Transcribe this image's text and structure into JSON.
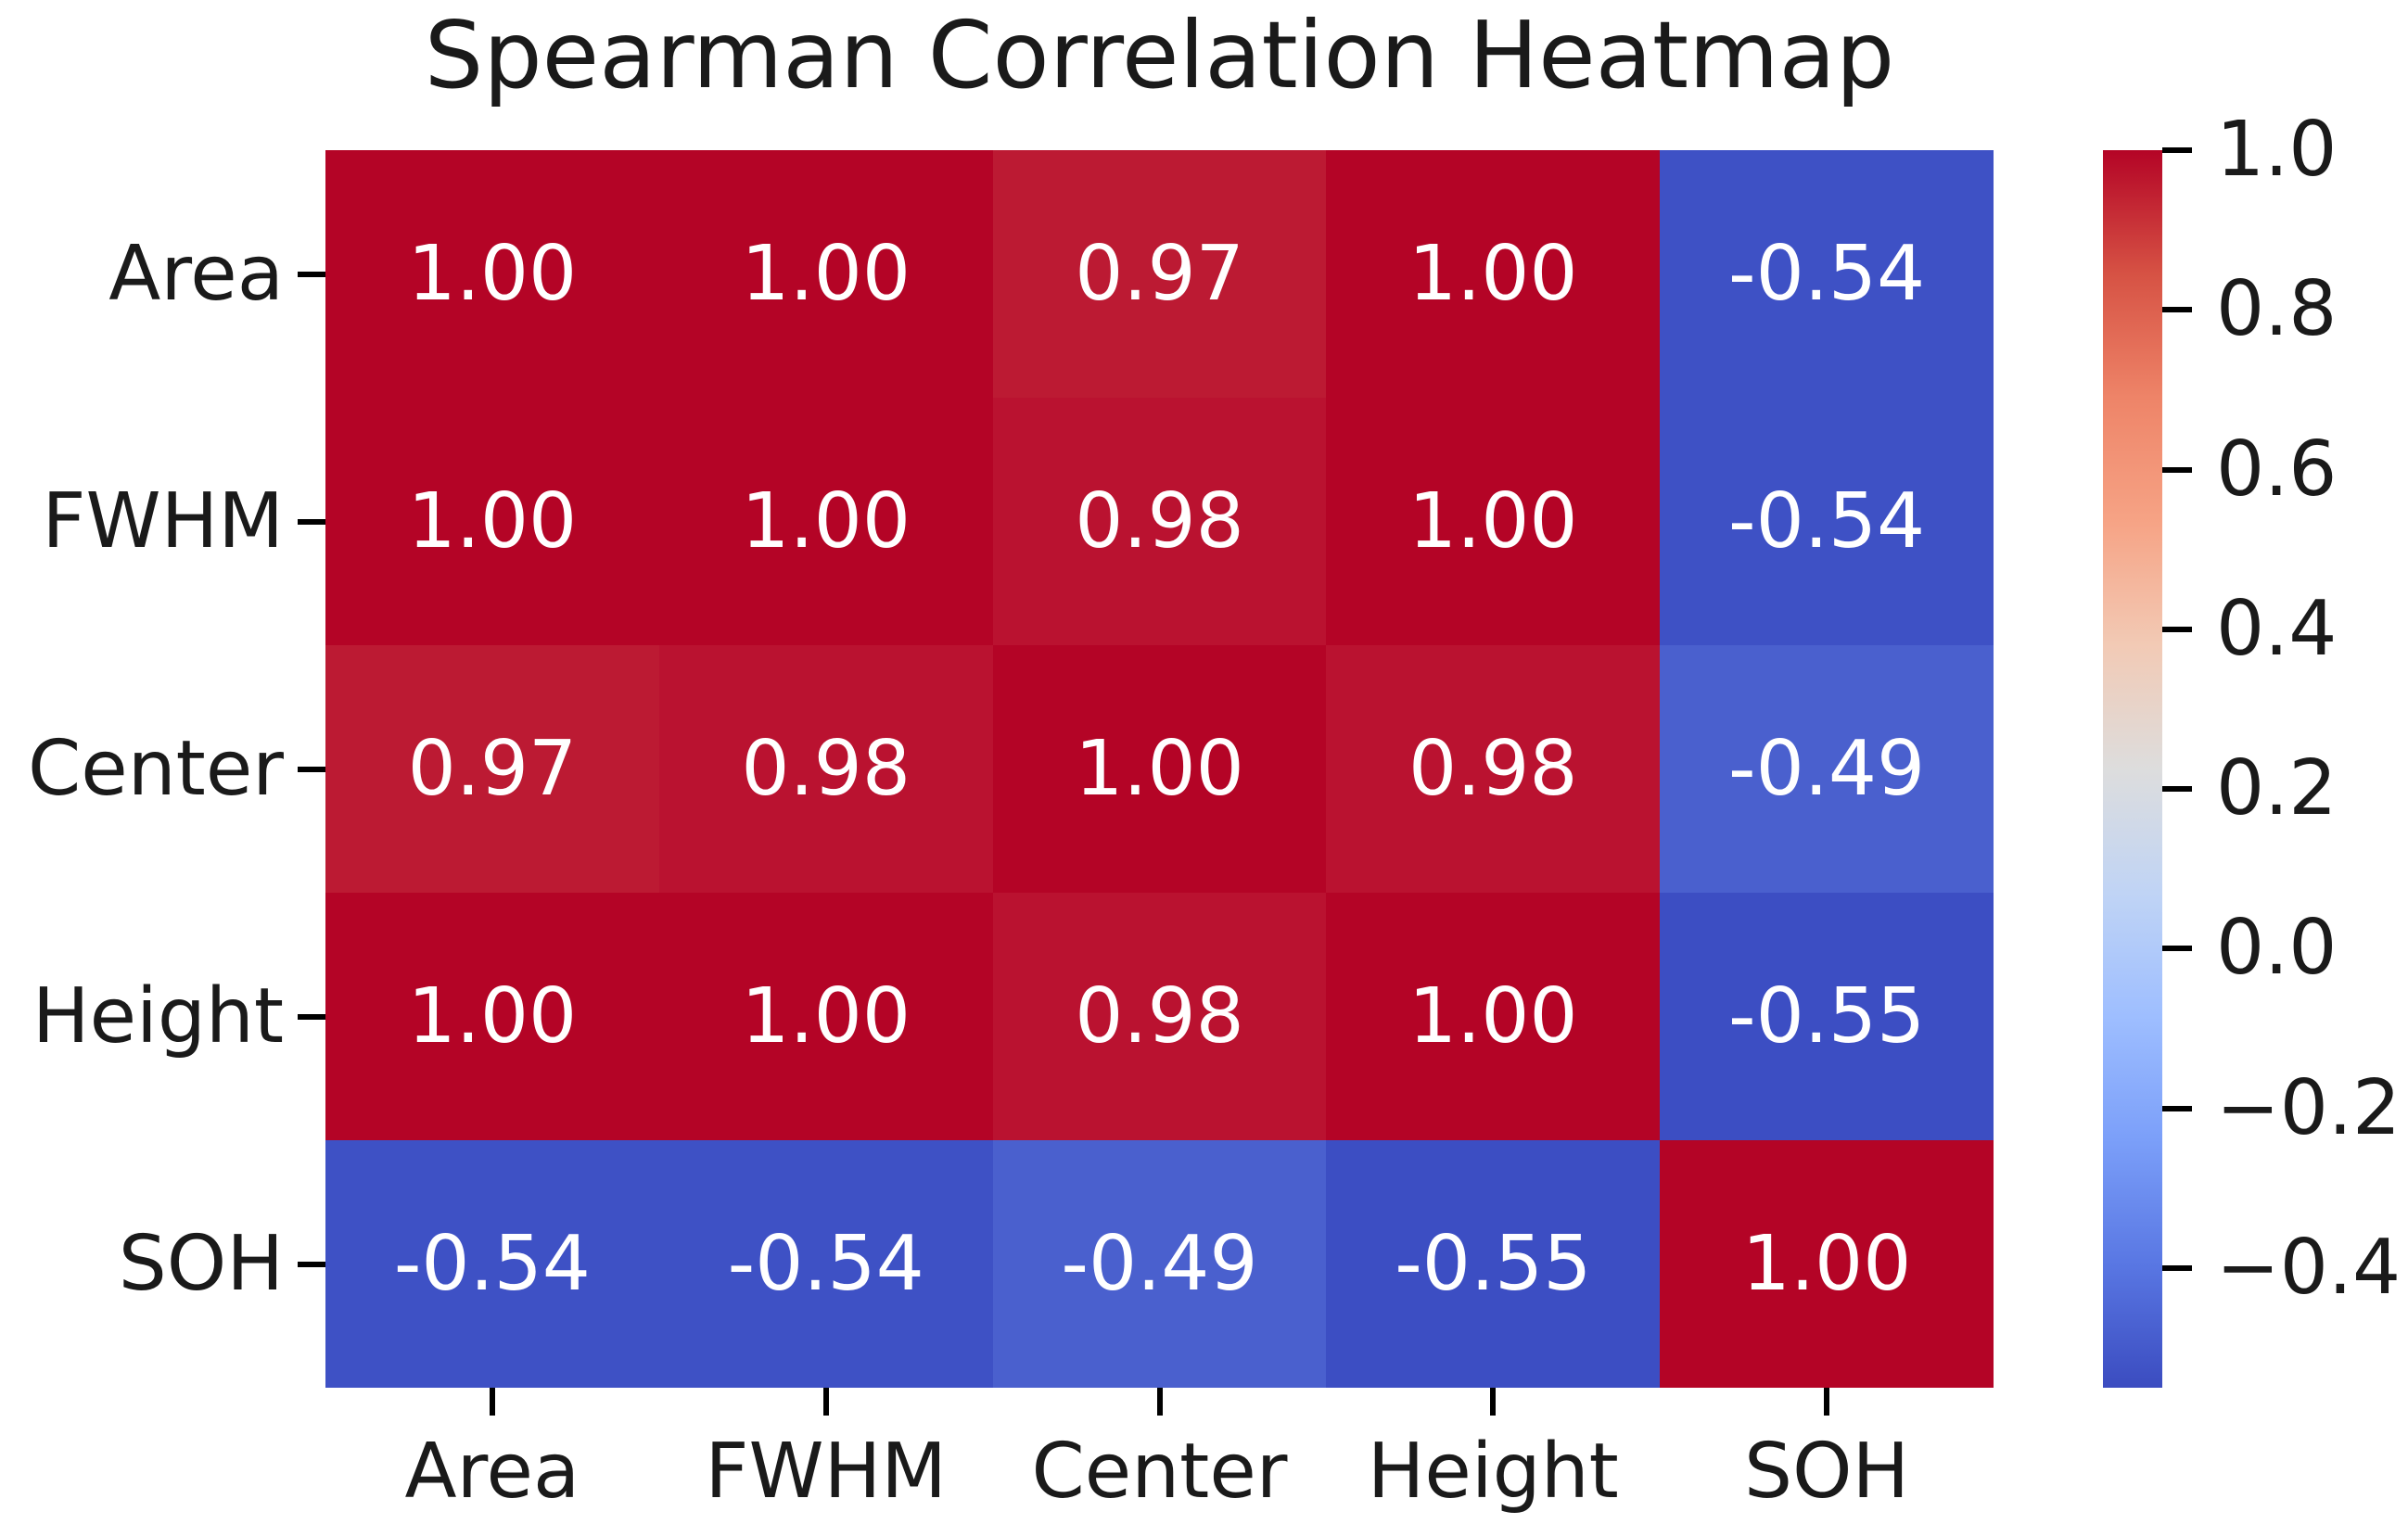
{
  "title": "Spearman Correlation Heatmap",
  "colors": {
    "background": "#ffffff",
    "text": "#1a1a1a",
    "tick": "#000000",
    "annotation_text": "#ffffff",
    "heat_max_red": "#b40426",
    "heat_min_blue": "#3b4cc0"
  },
  "chart_data": {
    "type": "heatmap",
    "title": "Spearman Correlation Heatmap",
    "x_categories": [
      "Area",
      "FWHM",
      "Center",
      "Height",
      "SOH"
    ],
    "y_categories": [
      "Area",
      "FWHM",
      "Center",
      "Height",
      "SOH"
    ],
    "matrix": [
      [
        1.0,
        1.0,
        0.97,
        1.0,
        -0.54
      ],
      [
        1.0,
        1.0,
        0.98,
        1.0,
        -0.54
      ],
      [
        0.97,
        0.98,
        1.0,
        0.98,
        -0.49
      ],
      [
        1.0,
        1.0,
        0.98,
        1.0,
        -0.55
      ],
      [
        -0.54,
        -0.54,
        -0.49,
        -0.55,
        1.0
      ]
    ],
    "cell_labels": [
      [
        "1.00",
        "1.00",
        "0.97",
        "1.00",
        "-0.54"
      ],
      [
        "1.00",
        "1.00",
        "0.98",
        "1.00",
        "-0.54"
      ],
      [
        "0.97",
        "0.98",
        "1.00",
        "0.98",
        "-0.49"
      ],
      [
        "1.00",
        "1.00",
        "0.98",
        "1.00",
        "-0.55"
      ],
      [
        "-0.54",
        "-0.54",
        "-0.49",
        "-0.55",
        "1.00"
      ]
    ],
    "cell_colors": [
      [
        "#b40426",
        "#b40426",
        "#bc1a33",
        "#b40426",
        "#3e51c5"
      ],
      [
        "#b40426",
        "#b40426",
        "#ba1230",
        "#b40426",
        "#3e51c5"
      ],
      [
        "#bc1a33",
        "#ba1230",
        "#b40426",
        "#ba1230",
        "#4a60ce"
      ],
      [
        "#b40426",
        "#b40426",
        "#ba1230",
        "#b40426",
        "#3c4ec3"
      ],
      [
        "#3e51c5",
        "#3e51c5",
        "#4a60ce",
        "#3c4ec3",
        "#b40426"
      ]
    ],
    "colormap": "coolwarm",
    "vmin": -0.55,
    "vmax": 1.0,
    "grid": false,
    "annotations": true,
    "colorbar": {
      "position": "right",
      "ticks": [
        {
          "label": "1.0",
          "value": 1.0
        },
        {
          "label": "0.8",
          "value": 0.8
        },
        {
          "label": "0.6",
          "value": 0.6
        },
        {
          "label": "0.4",
          "value": 0.4
        },
        {
          "label": "0.2",
          "value": 0.2
        },
        {
          "label": "0.0",
          "value": 0.0
        },
        {
          "label": "−0.2",
          "value": -0.2
        },
        {
          "label": "−0.4",
          "value": -0.4
        }
      ],
      "gradient_stops": [
        {
          "pos": 0,
          "color": "#b40426"
        },
        {
          "pos": 10,
          "color": "#d65244"
        },
        {
          "pos": 20,
          "color": "#ee8468"
        },
        {
          "pos": 30,
          "color": "#f6a385"
        },
        {
          "pos": 40,
          "color": "#f2cab5"
        },
        {
          "pos": 50,
          "color": "#dddddd"
        },
        {
          "pos": 60,
          "color": "#c0d4f5"
        },
        {
          "pos": 70,
          "color": "#9ebeff"
        },
        {
          "pos": 80,
          "color": "#7b9ff9"
        },
        {
          "pos": 90,
          "color": "#5977e3"
        },
        {
          "pos": 100,
          "color": "#3b4cc0"
        }
      ]
    }
  }
}
